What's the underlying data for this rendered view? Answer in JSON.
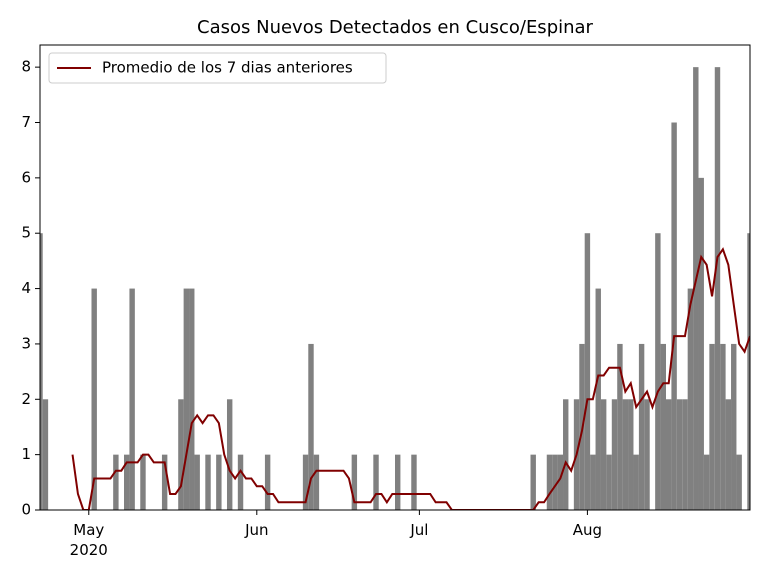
{
  "chart_data": {
    "type": "bar-line",
    "title": "Casos Nuevos Detectados en Cusco/Espinar",
    "x": [
      "2020-04-22",
      "2020-04-23",
      "2020-04-24",
      "2020-04-25",
      "2020-04-26",
      "2020-04-27",
      "2020-04-28",
      "2020-04-29",
      "2020-04-30",
      "2020-05-01",
      "2020-05-02",
      "2020-05-03",
      "2020-05-04",
      "2020-05-05",
      "2020-05-06",
      "2020-05-07",
      "2020-05-08",
      "2020-05-09",
      "2020-05-10",
      "2020-05-11",
      "2020-05-12",
      "2020-05-13",
      "2020-05-14",
      "2020-05-15",
      "2020-05-16",
      "2020-05-17",
      "2020-05-18",
      "2020-05-19",
      "2020-05-20",
      "2020-05-21",
      "2020-05-22",
      "2020-05-23",
      "2020-05-24",
      "2020-05-25",
      "2020-05-26",
      "2020-05-27",
      "2020-05-28",
      "2020-05-29",
      "2020-05-30",
      "2020-05-31",
      "2020-06-01",
      "2020-06-02",
      "2020-06-03",
      "2020-06-04",
      "2020-06-05",
      "2020-06-06",
      "2020-06-07",
      "2020-06-08",
      "2020-06-09",
      "2020-06-10",
      "2020-06-11",
      "2020-06-12",
      "2020-06-13",
      "2020-06-14",
      "2020-06-15",
      "2020-06-16",
      "2020-06-17",
      "2020-06-18",
      "2020-06-19",
      "2020-06-20",
      "2020-06-21",
      "2020-06-22",
      "2020-06-23",
      "2020-06-24",
      "2020-06-25",
      "2020-06-26",
      "2020-06-27",
      "2020-06-28",
      "2020-06-29",
      "2020-06-30",
      "2020-07-01",
      "2020-07-02",
      "2020-07-03",
      "2020-07-04",
      "2020-07-05",
      "2020-07-06",
      "2020-07-07",
      "2020-07-08",
      "2020-07-09",
      "2020-07-10",
      "2020-07-11",
      "2020-07-12",
      "2020-07-13",
      "2020-07-14",
      "2020-07-15",
      "2020-07-16",
      "2020-07-17",
      "2020-07-18",
      "2020-07-19",
      "2020-07-20",
      "2020-07-21",
      "2020-07-22",
      "2020-07-23",
      "2020-07-24",
      "2020-07-25",
      "2020-07-26",
      "2020-07-27",
      "2020-07-28",
      "2020-07-29",
      "2020-07-30",
      "2020-07-31",
      "2020-08-01",
      "2020-08-02",
      "2020-08-03",
      "2020-08-04",
      "2020-08-05",
      "2020-08-06",
      "2020-08-07",
      "2020-08-08",
      "2020-08-09",
      "2020-08-10",
      "2020-08-11",
      "2020-08-12",
      "2020-08-13",
      "2020-08-14",
      "2020-08-15",
      "2020-08-16",
      "2020-08-17",
      "2020-08-18",
      "2020-08-19",
      "2020-08-20",
      "2020-08-21",
      "2020-08-22",
      "2020-08-23",
      "2020-08-24",
      "2020-08-25",
      "2020-08-26",
      "2020-08-27",
      "2020-08-28",
      "2020-08-29",
      "2020-08-30",
      "2020-08-31"
    ],
    "series": [
      {
        "kind": "bar",
        "color": "#808080",
        "values": [
          5,
          2,
          0,
          0,
          0,
          0,
          0,
          0,
          0,
          0,
          4,
          0,
          0,
          0,
          1,
          0,
          1,
          4,
          0,
          1,
          0,
          0,
          0,
          1,
          0,
          0,
          2,
          4,
          4,
          1,
          0,
          1,
          0,
          1,
          0,
          2,
          0,
          1,
          0,
          0,
          0,
          0,
          1,
          0,
          0,
          0,
          0,
          0,
          0,
          1,
          3,
          1,
          0,
          0,
          0,
          0,
          0,
          0,
          1,
          0,
          0,
          0,
          1,
          0,
          0,
          0,
          1,
          0,
          0,
          1,
          0,
          0,
          0,
          0,
          0,
          0,
          0,
          0,
          0,
          0,
          0,
          0,
          0,
          0,
          0,
          0,
          0,
          0,
          0,
          0,
          0,
          1,
          0,
          0,
          1,
          1,
          1,
          2,
          0,
          2,
          3,
          5,
          1,
          4,
          2,
          1,
          2,
          3,
          2,
          2,
          1,
          3,
          2,
          0,
          5,
          3,
          2,
          7,
          2,
          2,
          4,
          8,
          6,
          1,
          3,
          8,
          3,
          2,
          3,
          1,
          0,
          5
        ]
      },
      {
        "kind": "line",
        "name": "Promedio de los 7 dias anteriores",
        "color": "#800000",
        "values": [
          null,
          null,
          null,
          null,
          null,
          null,
          1.0,
          0.29,
          0,
          0,
          0.57,
          0.57,
          0.57,
          0.57,
          0.71,
          0.71,
          0.86,
          0.86,
          0.86,
          1.0,
          1.0,
          0.86,
          0.86,
          0.86,
          0.29,
          0.29,
          0.43,
          1.0,
          1.57,
          1.71,
          1.57,
          1.71,
          1.71,
          1.57,
          1.0,
          0.71,
          0.57,
          0.71,
          0.57,
          0.57,
          0.43,
          0.43,
          0.29,
          0.29,
          0.14,
          0.14,
          0.14,
          0.14,
          0.14,
          0.14,
          0.57,
          0.71,
          0.71,
          0.71,
          0.71,
          0.71,
          0.71,
          0.57,
          0.14,
          0.14,
          0.14,
          0.14,
          0.29,
          0.29,
          0.14,
          0.29,
          0.29,
          0.29,
          0.29,
          0.29,
          0.29,
          0.29,
          0.29,
          0.14,
          0.14,
          0.14,
          0,
          0,
          0,
          0,
          0,
          0,
          0,
          0,
          0,
          0,
          0,
          0,
          0,
          0,
          0,
          0,
          0.14,
          0.14,
          0.29,
          0.43,
          0.57,
          0.86,
          0.71,
          1.0,
          1.43,
          2.0,
          2.0,
          2.43,
          2.43,
          2.57,
          2.57,
          2.57,
          2.14,
          2.29,
          1.86,
          2.0,
          2.14,
          1.86,
          2.14,
          2.29,
          2.29,
          3.14,
          3.14,
          3.14,
          3.71,
          4.14,
          4.57,
          4.43,
          3.86,
          4.57,
          4.71,
          4.43,
          3.71,
          3.0,
          2.86,
          3.14
        ]
      }
    ],
    "xlim": [
      "2020-04-22",
      "2020-08-31"
    ],
    "xticks": [
      {
        "value": "2020-05-01",
        "label": "May\n2020"
      },
      {
        "value": "2020-06-01",
        "label": "Jun"
      },
      {
        "value": "2020-07-01",
        "label": "Jul"
      },
      {
        "value": "2020-08-01",
        "label": "Aug"
      }
    ],
    "ylim": [
      0,
      8.4
    ],
    "yticks": [
      0,
      1,
      2,
      3,
      4,
      5,
      6,
      7,
      8
    ],
    "grid": false,
    "legend": "upper left"
  }
}
